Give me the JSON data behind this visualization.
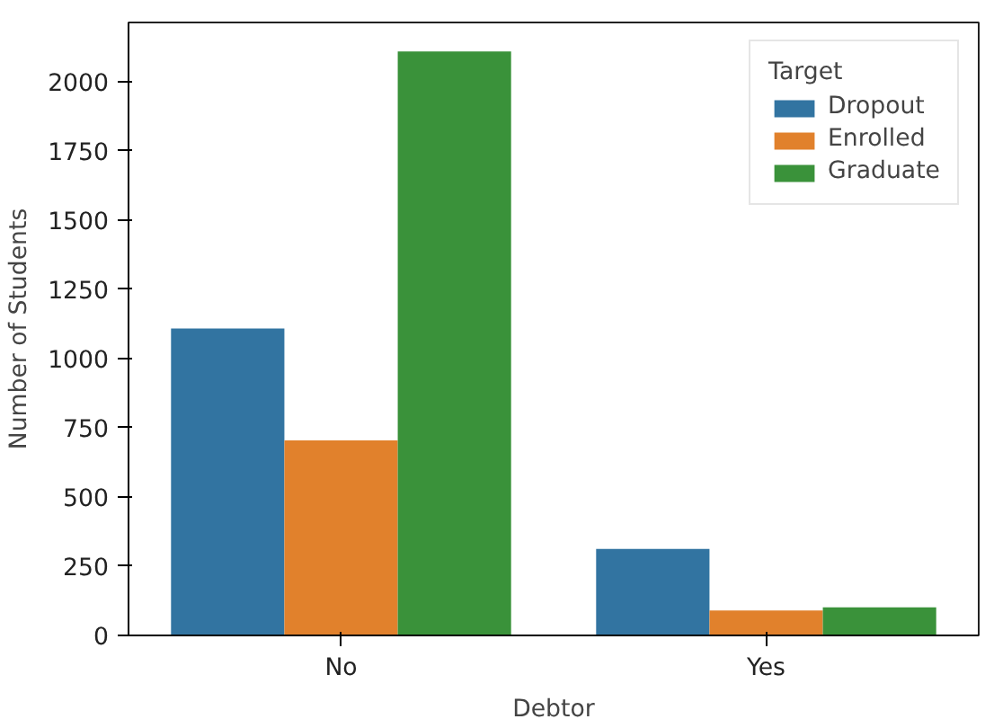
{
  "chart_data": {
    "type": "bar",
    "xlabel": "Debtor",
    "ylabel": "Number of Students",
    "legend_title": "Target",
    "categories": [
      "No",
      "Yes"
    ],
    "series": [
      {
        "name": "Dropout",
        "color": "#3274a1",
        "values": [
          1108,
          312
        ]
      },
      {
        "name": "Enrolled",
        "color": "#e1812c",
        "values": [
          704,
          90
        ]
      },
      {
        "name": "Graduate",
        "color": "#3a923a",
        "values": [
          2108,
          101
        ]
      }
    ],
    "ylim": [
      0,
      2213
    ],
    "yticks": [
      0,
      250,
      500,
      750,
      1000,
      1250,
      1500,
      1750,
      2000
    ],
    "grid": false,
    "legend": "top right"
  }
}
